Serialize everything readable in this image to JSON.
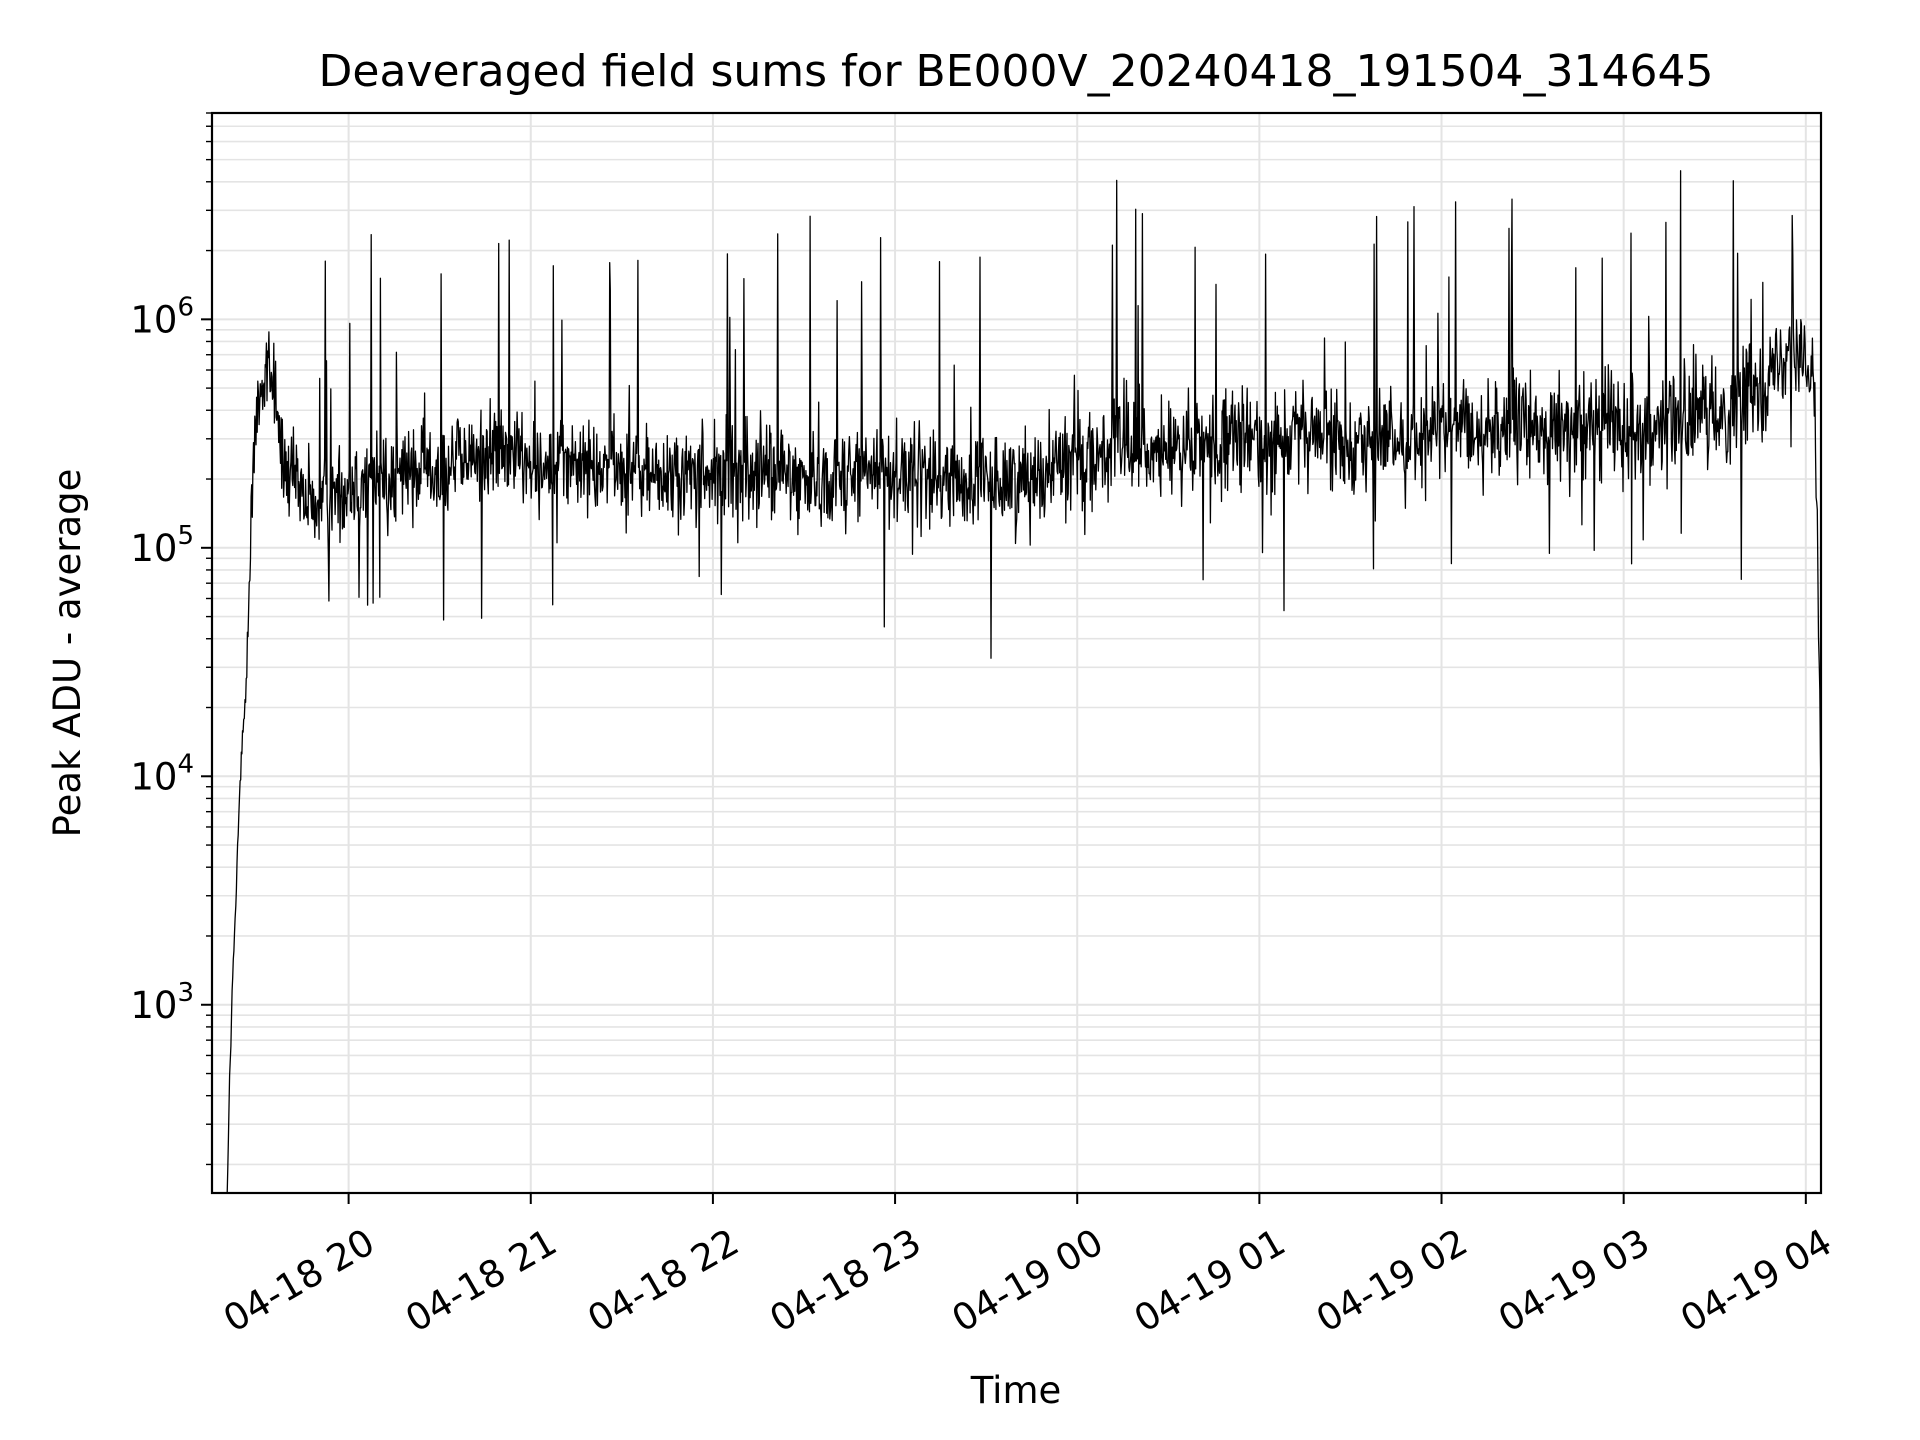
{
  "chart_data": {
    "type": "line",
    "title": "Deaveraged field sums for BE000V_20240418_191504_314645",
    "xlabel": "Time",
    "ylabel": "Peak ADU - average",
    "yscale": "log",
    "ylim": [
      150,
      8000000
    ],
    "xlim": [
      "2024-04-18 19:15",
      "2024-04-19 04:05"
    ],
    "grid": true,
    "line_color": "#000000",
    "x_ticks": [
      {
        "label": "04-18 20",
        "value": "2024-04-18 20:00"
      },
      {
        "label": "04-18 21",
        "value": "2024-04-18 21:00"
      },
      {
        "label": "04-18 22",
        "value": "2024-04-18 22:00"
      },
      {
        "label": "04-18 23",
        "value": "2024-04-18 23:00"
      },
      {
        "label": "04-19 00",
        "value": "2024-04-19 00:00"
      },
      {
        "label": "04-19 01",
        "value": "2024-04-19 01:00"
      },
      {
        "label": "04-19 02",
        "value": "2024-04-19 02:00"
      },
      {
        "label": "04-19 03",
        "value": "2024-04-19 03:00"
      },
      {
        "label": "04-19 04",
        "value": "2024-04-19 04:00"
      }
    ],
    "y_ticks": [
      {
        "base": "10",
        "exp": "3",
        "value": 1000
      },
      {
        "base": "10",
        "exp": "4",
        "value": 10000
      },
      {
        "base": "10",
        "exp": "5",
        "value": 100000
      },
      {
        "base": "10",
        "exp": "6",
        "value": 1000000
      }
    ],
    "series": [
      {
        "x": [
          "2024-04-18 19:20",
          "2024-04-18 19:21",
          "2024-04-18 19:22",
          "2024-04-18 19:23",
          "2024-04-18 19:24",
          "2024-04-18 19:25",
          "2024-04-18 19:26",
          "2024-04-18 19:27",
          "2024-04-18 19:28",
          "2024-04-18 19:30",
          "2024-04-18 19:32",
          "2024-04-18 19:34",
          "2024-04-18 19:36",
          "2024-04-18 19:38",
          "2024-04-18 19:40",
          "2024-04-18 19:45",
          "2024-04-18 19:50",
          "2024-04-18 19:55",
          "2024-04-18 20:00",
          "2024-04-18 20:10",
          "2024-04-18 20:20",
          "2024-04-18 20:30",
          "2024-04-18 20:40",
          "2024-04-18 20:50",
          "2024-04-18 21:00",
          "2024-04-18 21:15",
          "2024-04-18 21:30",
          "2024-04-18 21:45",
          "2024-04-18 22:00",
          "2024-04-18 22:15",
          "2024-04-18 22:30",
          "2024-04-18 22:45",
          "2024-04-18 23:00",
          "2024-04-18 23:15",
          "2024-04-18 23:30",
          "2024-04-18 23:45",
          "2024-04-19 00:00",
          "2024-04-19 00:15",
          "2024-04-19 00:30",
          "2024-04-19 00:45",
          "2024-04-19 01:00",
          "2024-04-19 01:15",
          "2024-04-19 01:30",
          "2024-04-19 01:45",
          "2024-04-19 02:00",
          "2024-04-19 02:15",
          "2024-04-19 02:30",
          "2024-04-19 02:45",
          "2024-04-19 03:00",
          "2024-04-19 03:15",
          "2024-04-19 03:30",
          "2024-04-19 03:40",
          "2024-04-19 03:50",
          "2024-04-19 03:55",
          "2024-04-19 04:00",
          "2024-04-19 04:03",
          "2024-04-19 04:04",
          "2024-04-19 04:05"
        ],
        "y": [
          150,
          600,
          1500,
          3000,
          8000,
          14000,
          20000,
          60000,
          150000,
          450000,
          550000,
          600000,
          500000,
          250000,
          200000,
          160000,
          150000,
          170000,
          180000,
          200000,
          210000,
          230000,
          250000,
          260000,
          250000,
          230000,
          220000,
          200000,
          210000,
          220000,
          200000,
          210000,
          220000,
          200000,
          190000,
          210000,
          250000,
          270000,
          260000,
          280000,
          300000,
          310000,
          300000,
          290000,
          320000,
          330000,
          340000,
          330000,
          350000,
          360000,
          380000,
          450000,
          600000,
          800000,
          700000,
          400000,
          70000,
          8000
        ]
      }
    ]
  }
}
